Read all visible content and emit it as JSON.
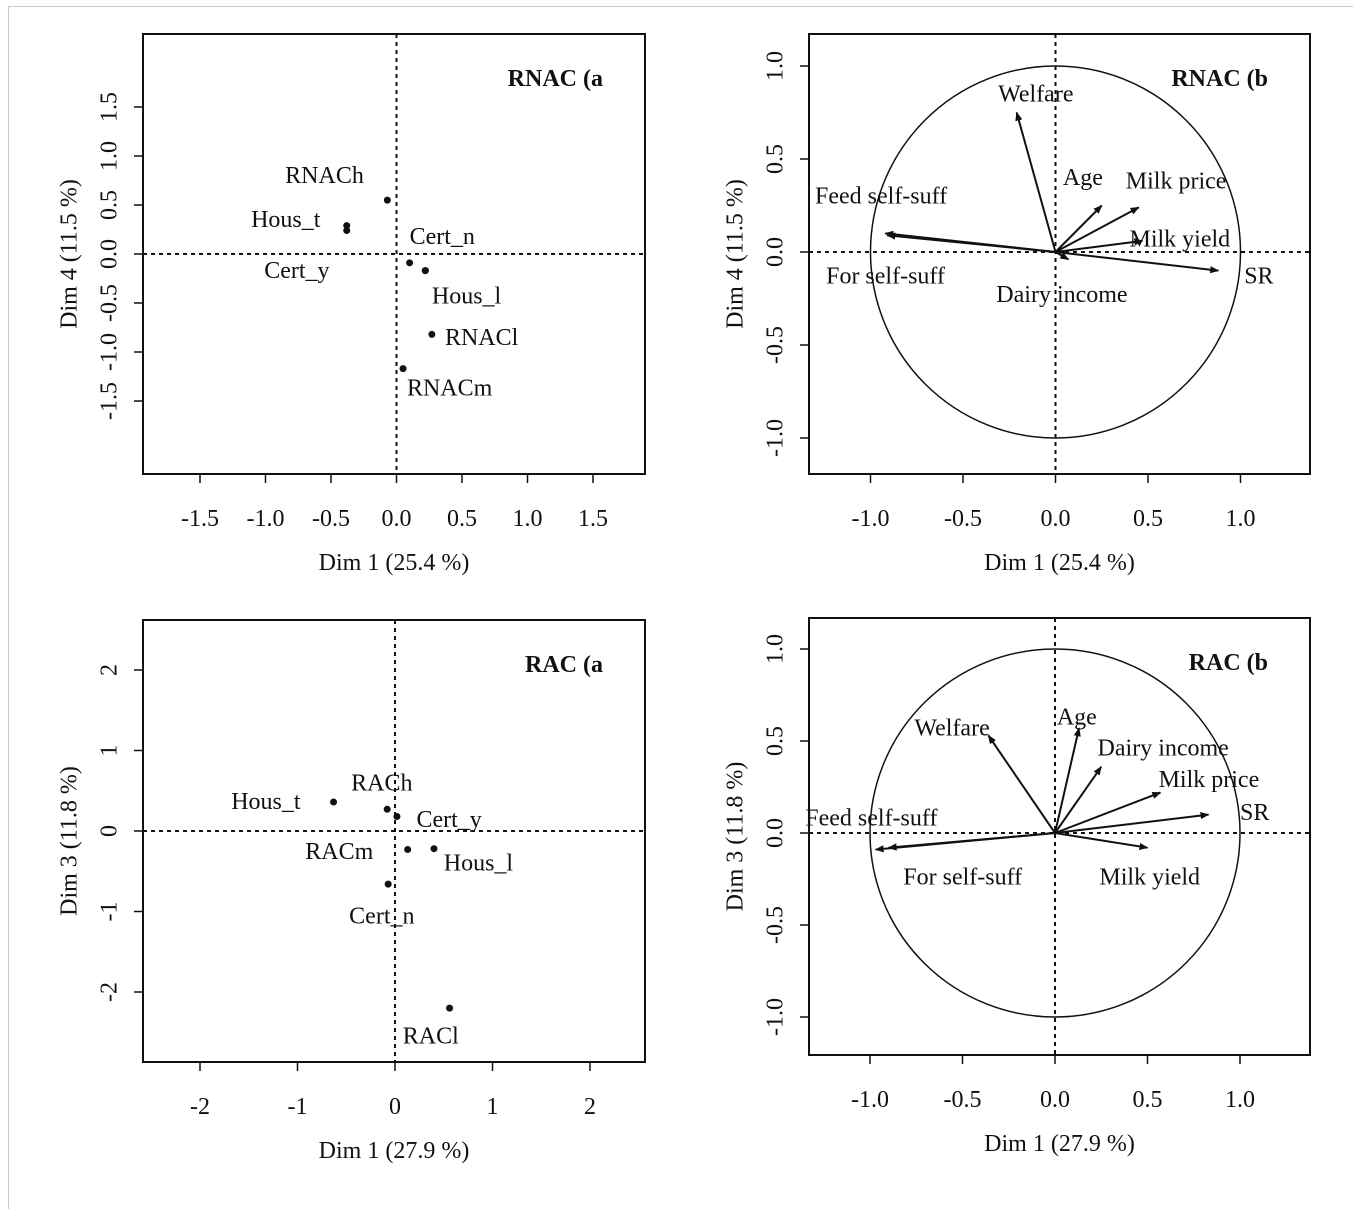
{
  "chart_data": [
    {
      "type": "scatter",
      "title": "RNAC (a",
      "xlabel": "Dim 1 (25.4 %)",
      "ylabel": "Dim 4 (11.5 %)",
      "xlim": [
        -1.95,
        1.62
      ],
      "ylim": [
        -1.88,
        1.88
      ],
      "xticks": [
        -1.5,
        -1.0,
        -0.5,
        0.0,
        0.5,
        1.0,
        1.5
      ],
      "yticks": [
        -1.5,
        -1.0,
        -0.5,
        0.0,
        0.5,
        1.0,
        1.5
      ],
      "xtick_labels": [
        "-1.5",
        "-1.0",
        "-0.5",
        "0.0",
        "0.5",
        "1.0",
        "1.5"
      ],
      "ytick_labels": [
        "-1.5",
        "-1.0",
        "-0.5",
        "0.0",
        "0.5",
        "1.0",
        "1.5"
      ],
      "points": [
        {
          "label": "RNACh",
          "x": -0.07,
          "y": 0.55,
          "lx": -0.85,
          "ly": 0.78
        },
        {
          "label": "Hous_t",
          "x": -0.38,
          "y": 0.29,
          "lx": -1.11,
          "ly": 0.33
        },
        {
          "label": "",
          "x": -0.38,
          "y": 0.24
        },
        {
          "label": "Cert_n",
          "x": 0.1,
          "y": -0.09,
          "lx": 0.1,
          "ly": 0.16
        },
        {
          "label": "Cert_y",
          "x": 0.22,
          "y": -0.17,
          "lx": -1.01,
          "ly": -0.19
        },
        {
          "label": "Hous_l",
          "x": 0.22,
          "y": -0.17,
          "lx": 0.27,
          "ly": -0.45
        },
        {
          "label": "RNACl",
          "x": 0.27,
          "y": -0.82,
          "lx": 0.37,
          "ly": -0.87
        },
        {
          "label": "RNACm",
          "x": 0.05,
          "y": -1.17,
          "lx": 0.08,
          "ly": -1.39
        }
      ]
    },
    {
      "type": "correlation-circle",
      "title": "RNAC (b",
      "xlabel": "Dim 1 (25.4 %)",
      "ylabel": "Dim 4 (11.5 %)",
      "xlim": [
        -1.35,
        1.35
      ],
      "ylim": [
        -1.17,
        1.17
      ],
      "xticks": [
        -1.0,
        -0.5,
        0.0,
        0.5,
        1.0
      ],
      "yticks": [
        -1.0,
        -0.5,
        0.0,
        0.5,
        1.0
      ],
      "xtick_labels": [
        "-1.0",
        "-0.5",
        "0.0",
        "0.5",
        "1.0"
      ],
      "ytick_labels": [
        "-1.0",
        "-0.5",
        "0.0",
        "0.5",
        "1.0"
      ],
      "vectors": [
        {
          "label": "Welfare",
          "x": -0.21,
          "y": 0.75,
          "lx": -0.31,
          "ly": 0.84
        },
        {
          "label": "Age",
          "x": 0.25,
          "y": 0.25,
          "lx": 0.04,
          "ly": 0.39
        },
        {
          "label": "Milk price",
          "x": 0.45,
          "y": 0.24,
          "lx": 0.38,
          "ly": 0.37
        },
        {
          "label": "Feed self-suff",
          "x": -0.91,
          "y": 0.09,
          "lx": -1.3,
          "ly": 0.29
        },
        {
          "label": "Milk yield",
          "x": 0.47,
          "y": 0.06,
          "lx": 0.4,
          "ly": 0.06
        },
        {
          "label": "For self-suff",
          "x": -0.92,
          "y": 0.1,
          "lx": -1.24,
          "ly": -0.14
        },
        {
          "label": "Dairy income",
          "x": 0.07,
          "y": -0.04,
          "lx": -0.32,
          "ly": -0.24
        },
        {
          "label": "SR",
          "x": 0.88,
          "y": -0.1,
          "lx": 1.02,
          "ly": -0.14
        }
      ]
    },
    {
      "type": "scatter",
      "title": "RAC (a",
      "xlabel": "Dim 1 (27.9 %)",
      "ylabel": "Dim 3 (11.8 %)",
      "xlim": [
        -2.55,
        2.65
      ],
      "ylim": [
        -2.82,
        2.48
      ],
      "xticks": [
        -2,
        -1,
        0,
        1,
        2
      ],
      "yticks": [
        -2,
        -1,
        0,
        1,
        2
      ],
      "xtick_labels": [
        "-2",
        "-1",
        "0",
        "1",
        "2"
      ],
      "ytick_labels": [
        "-2",
        "-1",
        "0",
        "1",
        "2"
      ],
      "points": [
        {
          "label": "RACh",
          "x": -0.08,
          "y": 0.27,
          "lx": -0.45,
          "ly": 0.57
        },
        {
          "label": "Hous_t",
          "x": -0.63,
          "y": 0.36,
          "lx": -1.68,
          "ly": 0.34
        },
        {
          "label": "Cert_y",
          "x": 0.02,
          "y": 0.18,
          "lx": 0.22,
          "ly": 0.12
        },
        {
          "label": "RACm",
          "x": 0.13,
          "y": -0.23,
          "lx": -0.92,
          "ly": -0.28
        },
        {
          "label": "Hous_l",
          "x": 0.4,
          "y": -0.22,
          "lx": 0.5,
          "ly": -0.42
        },
        {
          "label": "Cert_n",
          "x": -0.07,
          "y": -0.66,
          "lx": -0.47,
          "ly": -1.08
        },
        {
          "label": "RACl",
          "x": 0.56,
          "y": -2.2,
          "lx": 0.08,
          "ly": -2.57
        }
      ]
    },
    {
      "type": "correlation-circle",
      "title": "RAC (b",
      "xlabel": "Dim 1 (27.9 %)",
      "ylabel": "Dim 3 (11.8 %)",
      "xlim": [
        -1.35,
        1.35
      ],
      "ylim": [
        -1.17,
        1.17
      ],
      "xticks": [
        -1.0,
        -0.5,
        0.0,
        0.5,
        1.0
      ],
      "yticks": [
        -1.0,
        -0.5,
        0.0,
        0.5,
        1.0
      ],
      "xtick_labels": [
        "-1.0",
        "-0.5",
        "0.0",
        "0.5",
        "1.0"
      ],
      "ytick_labels": [
        "-1.0",
        "-0.5",
        "0.0",
        "0.5",
        "1.0"
      ],
      "vectors": [
        {
          "label": "Welfare",
          "x": -0.36,
          "y": 0.53,
          "lx": -0.76,
          "ly": 0.56
        },
        {
          "label": "Age",
          "x": 0.13,
          "y": 0.57,
          "lx": 0.01,
          "ly": 0.62
        },
        {
          "label": "Dairy income",
          "x": 0.25,
          "y": 0.36,
          "lx": 0.23,
          "ly": 0.45
        },
        {
          "label": "Milk price",
          "x": 0.57,
          "y": 0.22,
          "lx": 0.56,
          "ly": 0.28
        },
        {
          "label": "SR",
          "x": 0.83,
          "y": 0.1,
          "lx": 1.0,
          "ly": 0.1
        },
        {
          "label": "Feed self-suff",
          "x": -0.97,
          "y": -0.09,
          "lx": -1.35,
          "ly": 0.07
        },
        {
          "label": "For self-suff",
          "x": -0.9,
          "y": -0.08,
          "lx": -0.82,
          "ly": -0.25
        },
        {
          "label": "Milk yield",
          "x": 0.5,
          "y": -0.08,
          "lx": 0.24,
          "ly": -0.25
        }
      ]
    }
  ]
}
